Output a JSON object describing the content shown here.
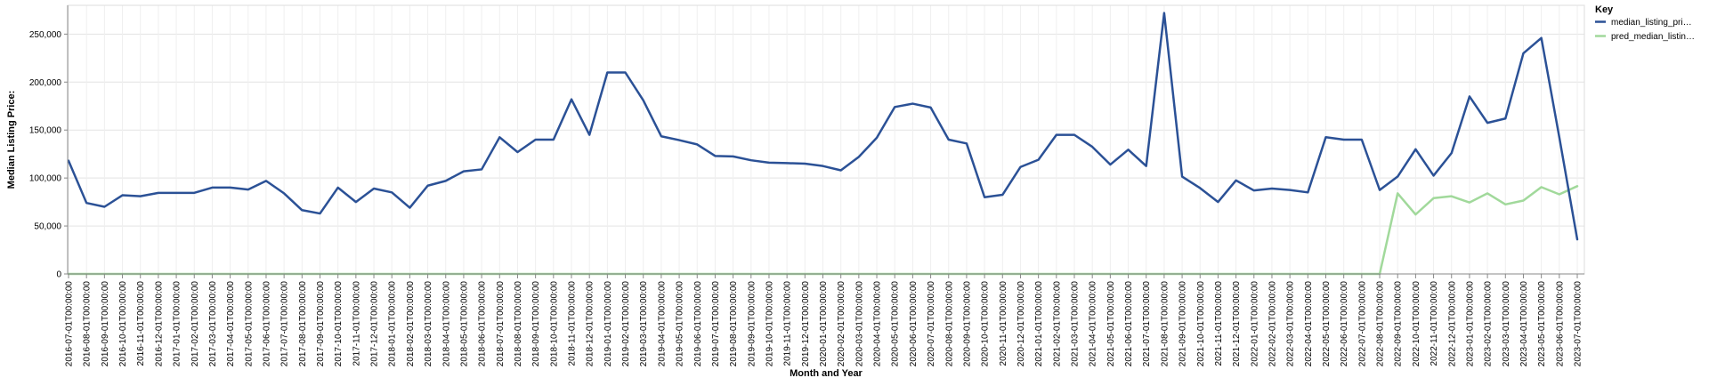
{
  "chart_data": {
    "type": "line",
    "title": "",
    "xlabel": "Month and Year",
    "ylabel": "Median Listing Price:",
    "ylim": [
      0,
      280000
    ],
    "yticks": [
      0,
      50000,
      100000,
      150000,
      200000,
      250000
    ],
    "ytick_labels": [
      "0",
      "50,000",
      "100,000",
      "150,000",
      "200,000",
      "250,000"
    ],
    "grid": true,
    "legend_title": "Key",
    "legend_position": "right",
    "x": [
      "2016-07-01T00:00:00",
      "2016-08-01T00:00:00",
      "2016-09-01T00:00:00",
      "2016-10-01T00:00:00",
      "2016-11-01T00:00:00",
      "2016-12-01T00:00:00",
      "2017-01-01T00:00:00",
      "2017-02-01T00:00:00",
      "2017-03-01T00:00:00",
      "2017-04-01T00:00:00",
      "2017-05-01T00:00:00",
      "2017-06-01T00:00:00",
      "2017-07-01T00:00:00",
      "2017-08-01T00:00:00",
      "2017-09-01T00:00:00",
      "2017-10-01T00:00:00",
      "2017-11-01T00:00:00",
      "2017-12-01T00:00:00",
      "2018-01-01T00:00:00",
      "2018-02-01T00:00:00",
      "2018-03-01T00:00:00",
      "2018-04-01T00:00:00",
      "2018-05-01T00:00:00",
      "2018-06-01T00:00:00",
      "2018-07-01T00:00:00",
      "2018-08-01T00:00:00",
      "2018-09-01T00:00:00",
      "2018-10-01T00:00:00",
      "2018-11-01T00:00:00",
      "2018-12-01T00:00:00",
      "2019-01-01T00:00:00",
      "2019-02-01T00:00:00",
      "2019-03-01T00:00:00",
      "2019-04-01T00:00:00",
      "2019-05-01T00:00:00",
      "2019-06-01T00:00:00",
      "2019-07-01T00:00:00",
      "2019-08-01T00:00:00",
      "2019-09-01T00:00:00",
      "2019-10-01T00:00:00",
      "2019-11-01T00:00:00",
      "2019-12-01T00:00:00",
      "2020-01-01T00:00:00",
      "2020-02-01T00:00:00",
      "2020-03-01T00:00:00",
      "2020-04-01T00:00:00",
      "2020-05-01T00:00:00",
      "2020-06-01T00:00:00",
      "2020-07-01T00:00:00",
      "2020-08-01T00:00:00",
      "2020-09-01T00:00:00",
      "2020-10-01T00:00:00",
      "2020-11-01T00:00:00",
      "2020-12-01T00:00:00",
      "2021-01-01T00:00:00",
      "2021-02-01T00:00:00",
      "2021-03-01T00:00:00",
      "2021-04-01T00:00:00",
      "2021-05-01T00:00:00",
      "2021-06-01T00:00:00",
      "2021-07-01T00:00:00",
      "2021-08-01T00:00:00",
      "2021-09-01T00:00:00",
      "2021-10-01T00:00:00",
      "2021-11-01T00:00:00",
      "2021-12-01T00:00:00",
      "2022-01-01T00:00:00",
      "2022-02-01T00:00:00",
      "2022-03-01T00:00:00",
      "2022-04-01T00:00:00",
      "2022-05-01T00:00:00",
      "2022-06-01T00:00:00",
      "2022-07-01T00:00:00",
      "2022-08-01T00:00:00",
      "2022-09-01T00:00:00",
      "2022-10-01T00:00:00",
      "2022-11-01T00:00:00",
      "2022-12-01T00:00:00",
      "2023-01-01T00:00:00",
      "2023-02-01T00:00:00",
      "2023-03-01T00:00:00",
      "2023-04-01T00:00:00",
      "2023-05-01T00:00:00",
      "2023-06-01T00:00:00",
      "2023-07-01T00:00:00"
    ],
    "series": [
      {
        "name": "median_listing_pri…",
        "color": "#2b5196",
        "values": [
          118000,
          74000,
          70000,
          82000,
          81000,
          84500,
          84500,
          84500,
          90000,
          90000,
          88000,
          97000,
          84000,
          66500,
          63000,
          90000,
          75000,
          89000,
          85000,
          69000,
          92000,
          97000,
          107000,
          109000,
          142500,
          127000,
          140000,
          140000,
          182000,
          145000,
          210000,
          210000,
          181000,
          143500,
          139500,
          135000,
          123000,
          122500,
          118500,
          116000,
          115500,
          115000,
          112500,
          108000,
          122000,
          142000,
          174000,
          177500,
          173500,
          140000,
          136000,
          80000,
          82500,
          111500,
          119000,
          145000,
          145000,
          132500,
          114000,
          129500,
          112500,
          272000,
          101500,
          89500,
          75000,
          97500,
          87000,
          89000,
          87500,
          85000,
          142500,
          140000,
          140000,
          87500,
          101500,
          130000,
          102500,
          126000,
          185000,
          157500,
          162000,
          230000,
          246000,
          142500,
          36000
        ]
      },
      {
        "name": "pred_median_listin…",
        "color": "#a1d99b",
        "values": [
          0,
          0,
          0,
          0,
          0,
          0,
          0,
          0,
          0,
          0,
          0,
          0,
          0,
          0,
          0,
          0,
          0,
          0,
          0,
          0,
          0,
          0,
          0,
          0,
          0,
          0,
          0,
          0,
          0,
          0,
          0,
          0,
          0,
          0,
          0,
          0,
          0,
          0,
          0,
          0,
          0,
          0,
          0,
          0,
          0,
          0,
          0,
          0,
          0,
          0,
          0,
          0,
          0,
          0,
          0,
          0,
          0,
          0,
          0,
          0,
          0,
          0,
          0,
          0,
          0,
          0,
          0,
          0,
          0,
          0,
          0,
          0,
          0,
          0,
          84000,
          62000,
          79000,
          81000,
          74500,
          84000,
          72500,
          76500,
          90500,
          83000,
          91500
        ]
      }
    ]
  }
}
